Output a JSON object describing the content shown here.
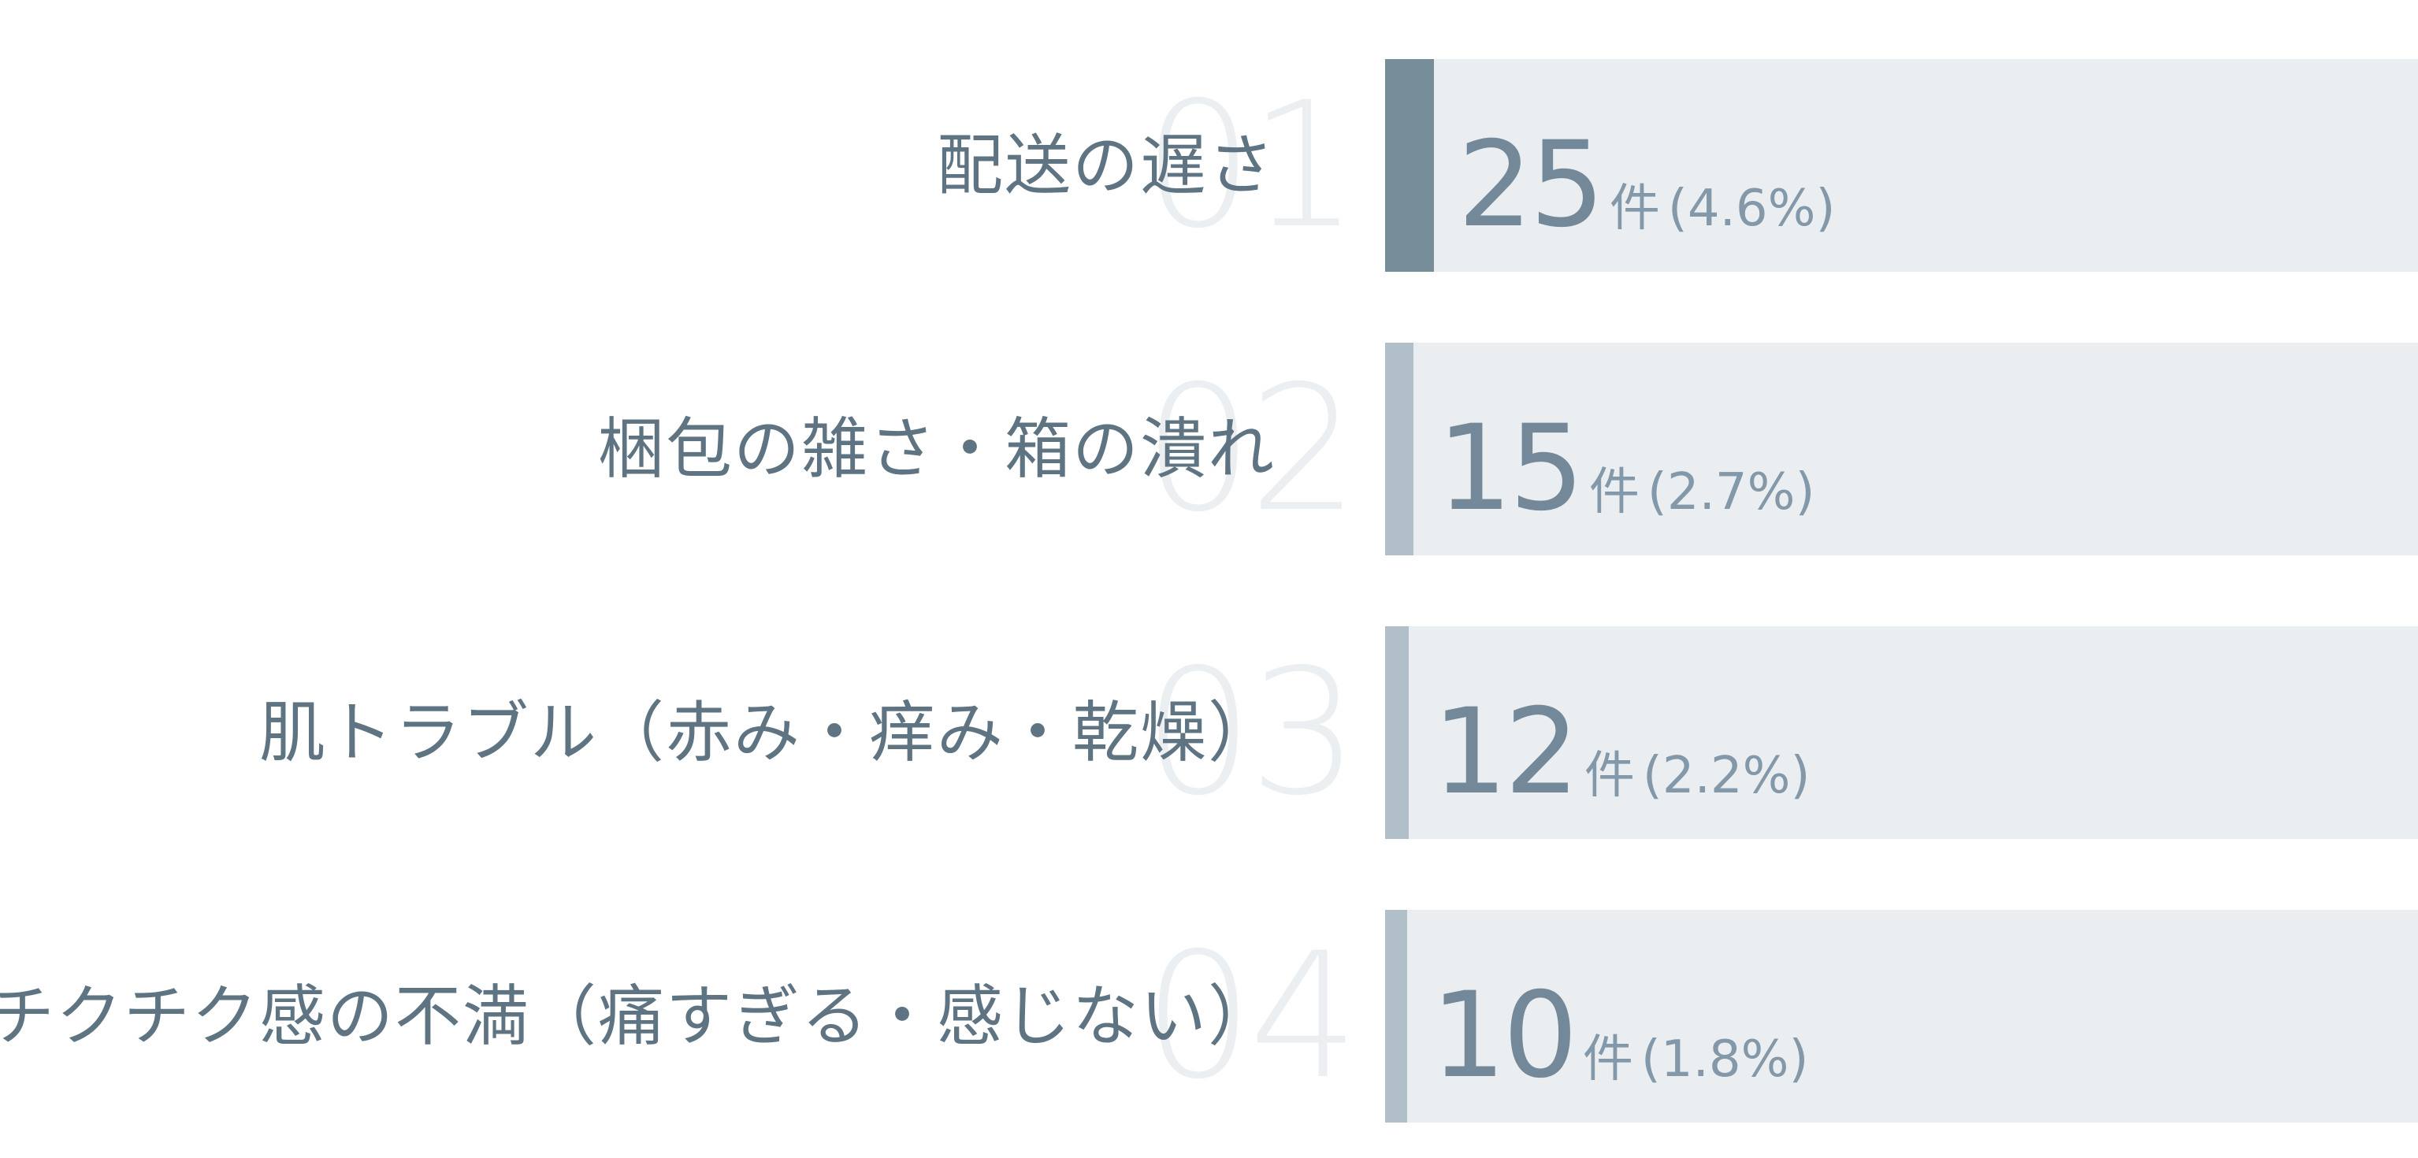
{
  "chart_data": {
    "type": "bar",
    "orientation": "horizontal",
    "categories": [
      "配送の遅さ",
      "梱包の雑さ・箱の潰れ",
      "肌トラブル（赤み・痒み・乾燥）",
      "チクチク感の不満（痛すぎる・感じない）"
    ],
    "ranks": [
      "01",
      "02",
      "03",
      "04"
    ],
    "values": [
      25,
      15,
      12,
      10
    ],
    "percent_labels": [
      "(4.6%)",
      "(2.7%)",
      "(2.2%)",
      "(1.8%)"
    ],
    "unit": "件",
    "percent_values": [
      4.6,
      2.7,
      2.2,
      1.8
    ],
    "colors": {
      "top_fill": "#788d9a",
      "fill": "#b1bfc8",
      "track": "#eaeef1",
      "label": "#5f7482",
      "count": "#73899a",
      "rank_watermark": "#eceff2"
    }
  }
}
